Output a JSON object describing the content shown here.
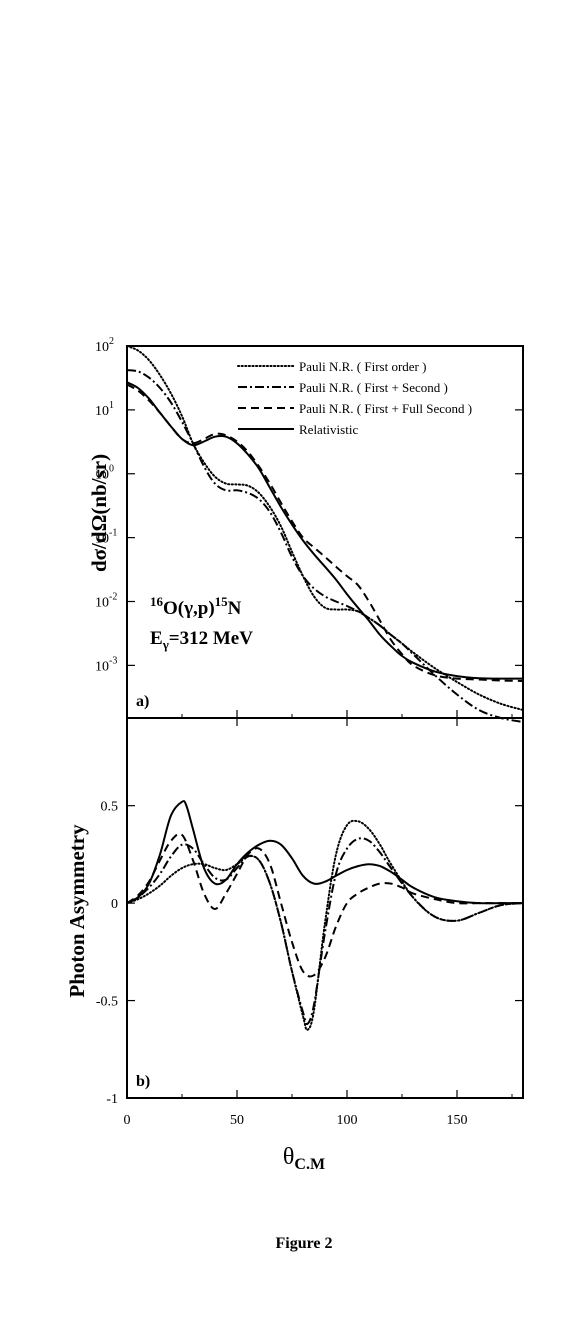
{
  "figure_caption": "Figure 2",
  "colors": {
    "lines": "#000000",
    "background": "#ffffff"
  },
  "chart_data": [
    {
      "type": "line",
      "panel_label": "a)",
      "ylabel": "dσ/dΩ(nb/sr)",
      "yscale": "log",
      "xlim": [
        0,
        180
      ],
      "ylim": [
        0.00015,
        100
      ],
      "ytick_labels": [
        {
          "value": 100,
          "base": "10",
          "exp": "2"
        },
        {
          "value": 10,
          "base": "10",
          "exp": "1"
        },
        {
          "value": 1,
          "base": "10",
          "exp": "0"
        },
        {
          "value": 0.1,
          "base": "10",
          "exp": "-1"
        },
        {
          "value": 0.01,
          "base": "10",
          "exp": "-2"
        },
        {
          "value": 0.001,
          "base": "10",
          "exp": "-3"
        }
      ],
      "annotation": {
        "reaction": {
          "mass_a": "16",
          "el_a": "O(",
          "gamma": "γ",
          "mid": ",p)",
          "mass_b": "15",
          "el_b": "N"
        },
        "energy": {
          "e": "E",
          "sub": "γ",
          "rest": "=312 MeV"
        }
      },
      "legend_position": "top-right",
      "grid": false,
      "series": [
        {
          "name": "Pauli N.R. ( First order )",
          "style": "dotted",
          "x": [
            0,
            5,
            10,
            15,
            20,
            25,
            30,
            35,
            40,
            45,
            50,
            55,
            60,
            65,
            70,
            75,
            80,
            85,
            90,
            95,
            100,
            105,
            110,
            115,
            120,
            125,
            130,
            140,
            150,
            160,
            170,
            180
          ],
          "y": [
            100,
            85,
            60,
            35,
            18,
            8,
            3,
            1.5,
            0.9,
            0.7,
            0.68,
            0.65,
            0.5,
            0.3,
            0.15,
            0.06,
            0.025,
            0.012,
            0.008,
            0.0075,
            0.0075,
            0.007,
            0.0055,
            0.0042,
            0.003,
            0.0022,
            0.0016,
            0.0009,
            0.00055,
            0.00035,
            0.00025,
            0.0002
          ]
        },
        {
          "name": "Pauli N.R. ( First + Second )",
          "style": "dash-dot",
          "x": [
            0,
            5,
            10,
            15,
            20,
            25,
            30,
            35,
            40,
            45,
            50,
            55,
            60,
            65,
            70,
            75,
            80,
            85,
            90,
            95,
            100,
            105,
            110,
            115,
            120,
            125,
            130,
            140,
            150,
            160,
            170,
            180
          ],
          "y": [
            42,
            40,
            32,
            22,
            13,
            6.5,
            3,
            1.3,
            0.7,
            0.55,
            0.55,
            0.5,
            0.4,
            0.25,
            0.12,
            0.05,
            0.025,
            0.016,
            0.012,
            0.01,
            0.0085,
            0.007,
            0.0055,
            0.0042,
            0.003,
            0.0022,
            0.0015,
            0.0007,
            0.00035,
            0.0002,
            0.00015,
            0.00013
          ]
        },
        {
          "name": "Pauli N.R. ( First + Full Second )",
          "style": "dashed",
          "x": [
            0,
            5,
            10,
            15,
            20,
            25,
            30,
            35,
            40,
            45,
            50,
            55,
            60,
            65,
            70,
            75,
            80,
            85,
            90,
            95,
            100,
            105,
            110,
            115,
            120,
            125,
            130,
            140,
            150,
            160,
            170,
            180
          ],
          "y": [
            25,
            20,
            14,
            9,
            5.5,
            3.5,
            3,
            3.5,
            4.2,
            4.0,
            3.2,
            2.2,
            1.3,
            0.7,
            0.35,
            0.18,
            0.1,
            0.07,
            0.05,
            0.035,
            0.025,
            0.018,
            0.01,
            0.005,
            0.0025,
            0.0015,
            0.001,
            0.0007,
            0.00062,
            0.0006,
            0.00058,
            0.00057
          ]
        },
        {
          "name": "Relativistic",
          "style": "solid",
          "x": [
            0,
            5,
            10,
            15,
            20,
            25,
            30,
            35,
            40,
            45,
            50,
            55,
            60,
            65,
            70,
            75,
            80,
            85,
            90,
            95,
            100,
            105,
            110,
            115,
            120,
            125,
            130,
            140,
            150,
            160,
            170,
            180
          ],
          "y": [
            27,
            22,
            15,
            9,
            5.5,
            3.5,
            2.8,
            3.2,
            3.8,
            3.8,
            3.0,
            2.0,
            1.2,
            0.6,
            0.3,
            0.16,
            0.09,
            0.055,
            0.035,
            0.022,
            0.013,
            0.008,
            0.005,
            0.003,
            0.002,
            0.0014,
            0.0011,
            0.0008,
            0.00068,
            0.00063,
            0.00062,
            0.00062
          ]
        }
      ]
    },
    {
      "type": "line",
      "panel_label": "b)",
      "ylabel": "Photon Asymmetry",
      "xlabel": {
        "theta": "θ",
        "sub": "C.M"
      },
      "xlim": [
        0,
        180
      ],
      "ylim": [
        -1,
        0.95
      ],
      "xticks": [
        0,
        50,
        100,
        150
      ],
      "yticks": [
        -1,
        -0.5,
        0,
        0.5
      ],
      "grid": false,
      "series": [
        {
          "name": "Pauli N.R. ( First order )",
          "style": "dotted",
          "x": [
            0,
            5,
            10,
            15,
            20,
            25,
            30,
            35,
            40,
            45,
            50,
            55,
            60,
            65,
            70,
            75,
            80,
            82,
            85,
            90,
            95,
            100,
            105,
            110,
            115,
            120,
            130,
            140,
            150,
            160,
            170,
            180
          ],
          "y": [
            0,
            0.02,
            0.05,
            0.09,
            0.14,
            0.18,
            0.2,
            0.2,
            0.18,
            0.17,
            0.2,
            0.24,
            0.22,
            0.1,
            -0.1,
            -0.35,
            -0.58,
            -0.65,
            -0.55,
            -0.1,
            0.25,
            0.4,
            0.42,
            0.38,
            0.3,
            0.2,
            0.03,
            -0.07,
            -0.09,
            -0.05,
            -0.01,
            0
          ]
        },
        {
          "name": "Pauli N.R. ( First + Second )",
          "style": "dash-dot",
          "x": [
            0,
            5,
            10,
            15,
            20,
            25,
            30,
            35,
            40,
            45,
            50,
            55,
            60,
            65,
            70,
            75,
            80,
            82,
            85,
            90,
            95,
            100,
            105,
            110,
            115,
            120,
            130,
            140,
            150,
            160,
            170,
            180
          ],
          "y": [
            0,
            0.03,
            0.08,
            0.15,
            0.24,
            0.3,
            0.28,
            0.2,
            0.13,
            0.12,
            0.18,
            0.24,
            0.22,
            0.1,
            -0.1,
            -0.35,
            -0.56,
            -0.62,
            -0.52,
            -0.15,
            0.15,
            0.28,
            0.33,
            0.32,
            0.26,
            0.18,
            0.03,
            -0.07,
            -0.09,
            -0.05,
            -0.01,
            0
          ]
        },
        {
          "name": "Pauli N.R. ( First + Full Second )",
          "style": "dashed",
          "x": [
            0,
            5,
            10,
            15,
            20,
            25,
            30,
            35,
            40,
            45,
            50,
            55,
            60,
            65,
            70,
            75,
            80,
            85,
            90,
            95,
            100,
            105,
            110,
            115,
            120,
            125,
            130,
            140,
            150,
            160,
            170,
            180
          ],
          "y": [
            0,
            0.04,
            0.11,
            0.22,
            0.32,
            0.35,
            0.22,
            0.05,
            -0.03,
            0.05,
            0.15,
            0.25,
            0.28,
            0.2,
            0.0,
            -0.2,
            -0.35,
            -0.37,
            -0.28,
            -0.12,
            0.0,
            0.05,
            0.08,
            0.1,
            0.1,
            0.08,
            0.05,
            0.02,
            0.0,
            0.0,
            0.0,
            0.0
          ]
        },
        {
          "name": "Relativistic",
          "style": "solid",
          "x": [
            0,
            5,
            10,
            15,
            20,
            25,
            27,
            30,
            35,
            40,
            45,
            50,
            55,
            60,
            65,
            70,
            75,
            80,
            85,
            90,
            95,
            100,
            105,
            110,
            115,
            120,
            125,
            130,
            140,
            150,
            160,
            170,
            180
          ],
          "y": [
            0,
            0.03,
            0.1,
            0.25,
            0.45,
            0.52,
            0.5,
            0.38,
            0.18,
            0.1,
            0.12,
            0.2,
            0.26,
            0.3,
            0.32,
            0.3,
            0.23,
            0.14,
            0.1,
            0.11,
            0.14,
            0.17,
            0.19,
            0.2,
            0.19,
            0.16,
            0.12,
            0.08,
            0.03,
            0.01,
            0.0,
            0.0,
            0.0
          ]
        }
      ]
    }
  ]
}
